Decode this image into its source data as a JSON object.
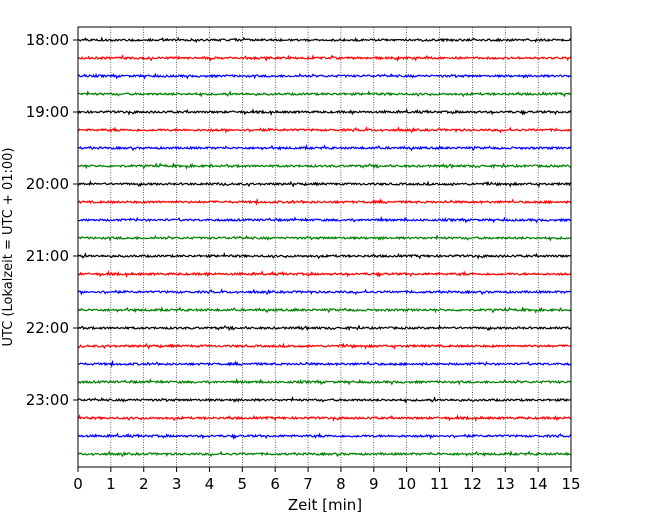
{
  "chart_data": {
    "type": "line",
    "title": "",
    "xlabel": "Zeit  [min]",
    "ylabel": "UTC (Lokalzeit = UTC + 01:00)",
    "xlim": [
      0,
      15
    ],
    "x_ticks": [
      "0",
      "1",
      "2",
      "3",
      "4",
      "5",
      "6",
      "7",
      "8",
      "9",
      "10",
      "11",
      "12",
      "13",
      "14",
      "15"
    ],
    "y_ticks": [
      "18:00",
      "19:00",
      "20:00",
      "21:00",
      "22:00",
      "23:00"
    ],
    "grid_x": true,
    "grid_y": false,
    "start_hour": "18:00",
    "trace_minutes": 15,
    "trace_colors": [
      "#000000",
      "#ff0000",
      "#0000ff",
      "#008000"
    ],
    "trace_count": 24
  }
}
